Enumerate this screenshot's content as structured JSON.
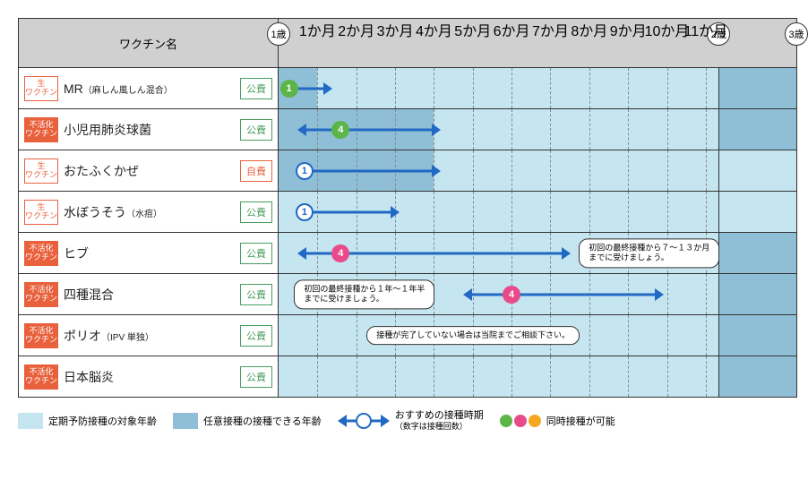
{
  "header": {
    "title": "ワクチン名"
  },
  "ages": [
    {
      "label": "1歳",
      "pct": 0
    },
    {
      "label": "2歳",
      "pct": 85
    },
    {
      "label": "3歳",
      "pct": 100
    }
  ],
  "months": [
    "1か月",
    "2か月",
    "3か月",
    "4か月",
    "5か月",
    "6か月",
    "7か月",
    "8か月",
    "9か月",
    "10か月",
    "11か月"
  ],
  "month_step_pct": 7.5,
  "colors": {
    "header_bg": "#d0d0d0",
    "bg_light": "#c5e5f0",
    "bg_dark": "#8fbfd6",
    "arrow": "#2169c4",
    "green": "#5cb548",
    "pink": "#e94b8a",
    "orange": "#e8603c",
    "pub_green": "#4a9d5e"
  },
  "vtype_labels": {
    "live": "生\nワクチン",
    "inact": "不活化\nワクチン"
  },
  "cost_labels": {
    "pub": "公費",
    "self": "自費"
  },
  "rows": [
    {
      "type": "live",
      "name": "MR",
      "sub": "（麻しん風しん混合）",
      "cost": "pub",
      "bands": [
        {
          "kind": "light",
          "from": 0,
          "to": 85
        },
        {
          "kind": "dark",
          "from": 0,
          "to": 7.5
        },
        {
          "kind": "dark",
          "from": 85,
          "to": 100
        }
      ],
      "arrows": [
        {
          "from": 2,
          "to": 9,
          "lhead": false,
          "rhead": true
        }
      ],
      "doses": [
        {
          "pct": 2,
          "n": "1",
          "style": "green"
        }
      ]
    },
    {
      "type": "inact",
      "name": "小児用肺炎球菌",
      "cost": "pub",
      "bands": [
        {
          "kind": "light",
          "from": 0,
          "to": 85
        },
        {
          "kind": "dark",
          "from": 0,
          "to": 30
        },
        {
          "kind": "dark",
          "from": 85,
          "to": 100
        }
      ],
      "arrows": [
        {
          "from": 5,
          "to": 30,
          "lhead": true,
          "rhead": true
        }
      ],
      "doses": [
        {
          "pct": 12,
          "n": "4",
          "style": "green"
        }
      ]
    },
    {
      "type": "live",
      "name": "おたふくかぜ",
      "cost": "self",
      "bands": [
        {
          "kind": "dark",
          "from": 0,
          "to": 30
        },
        {
          "kind": "light",
          "from": 30,
          "to": 100
        }
      ],
      "arrows": [
        {
          "from": 5,
          "to": 30,
          "lhead": false,
          "rhead": true
        }
      ],
      "doses": [
        {
          "pct": 5,
          "n": "1",
          "style": "hollow"
        }
      ]
    },
    {
      "type": "live",
      "name": "水ぼうそう",
      "sub": "（水痘）",
      "cost": "pub",
      "bands": [
        {
          "kind": "light",
          "from": 0,
          "to": 100
        }
      ],
      "arrows": [
        {
          "from": 5,
          "to": 22,
          "lhead": false,
          "rhead": true
        }
      ],
      "doses": [
        {
          "pct": 5,
          "n": "1",
          "style": "hollow"
        }
      ]
    },
    {
      "type": "inact",
      "name": "ヒブ",
      "cost": "pub",
      "bands": [
        {
          "kind": "light",
          "from": 0,
          "to": 85
        },
        {
          "kind": "dark",
          "from": 85,
          "to": 100
        }
      ],
      "arrows": [
        {
          "from": 5,
          "to": 55,
          "lhead": true,
          "rhead": true
        }
      ],
      "doses": [
        {
          "pct": 12,
          "n": "4",
          "style": "pink"
        }
      ],
      "notes": [
        {
          "pct": 58,
          "text": "初回の最終接種から７〜１３か月\nまでに受けましょう。"
        }
      ]
    },
    {
      "type": "inact",
      "name": "四種混合",
      "cost": "pub",
      "bands": [
        {
          "kind": "light",
          "from": 0,
          "to": 85
        },
        {
          "kind": "dark",
          "from": 85,
          "to": 100
        }
      ],
      "arrows": [
        {
          "from": 37,
          "to": 73,
          "lhead": true,
          "rhead": true
        }
      ],
      "doses": [
        {
          "pct": 45,
          "n": "4",
          "style": "pink"
        }
      ],
      "notes": [
        {
          "pct": 3,
          "text": "初回の最終接種から１年〜１年半\nまでに受けましょう。"
        }
      ]
    },
    {
      "type": "inact",
      "name": "ポリオ",
      "sub": "（IPV 単独）",
      "cost": "pub",
      "bands": [
        {
          "kind": "light",
          "from": 0,
          "to": 85
        },
        {
          "kind": "dark",
          "from": 85,
          "to": 100
        }
      ],
      "notes": [
        {
          "pct": 17,
          "text": "接種が完了していない場合は当院までご相談下さい。"
        }
      ]
    },
    {
      "type": "inact",
      "name": "日本脳炎",
      "cost": "pub",
      "bands": [
        {
          "kind": "light",
          "from": 0,
          "to": 85
        },
        {
          "kind": "dark",
          "from": 85,
          "to": 100
        }
      ]
    }
  ],
  "legend": {
    "item1": "定期予防接種の対象年齢",
    "item2": "任意接種の接種できる年齢",
    "item3": "おすすめの接種時期",
    "item3_sub": "（数字は接種回数）",
    "item4": "同時接種が可能"
  }
}
